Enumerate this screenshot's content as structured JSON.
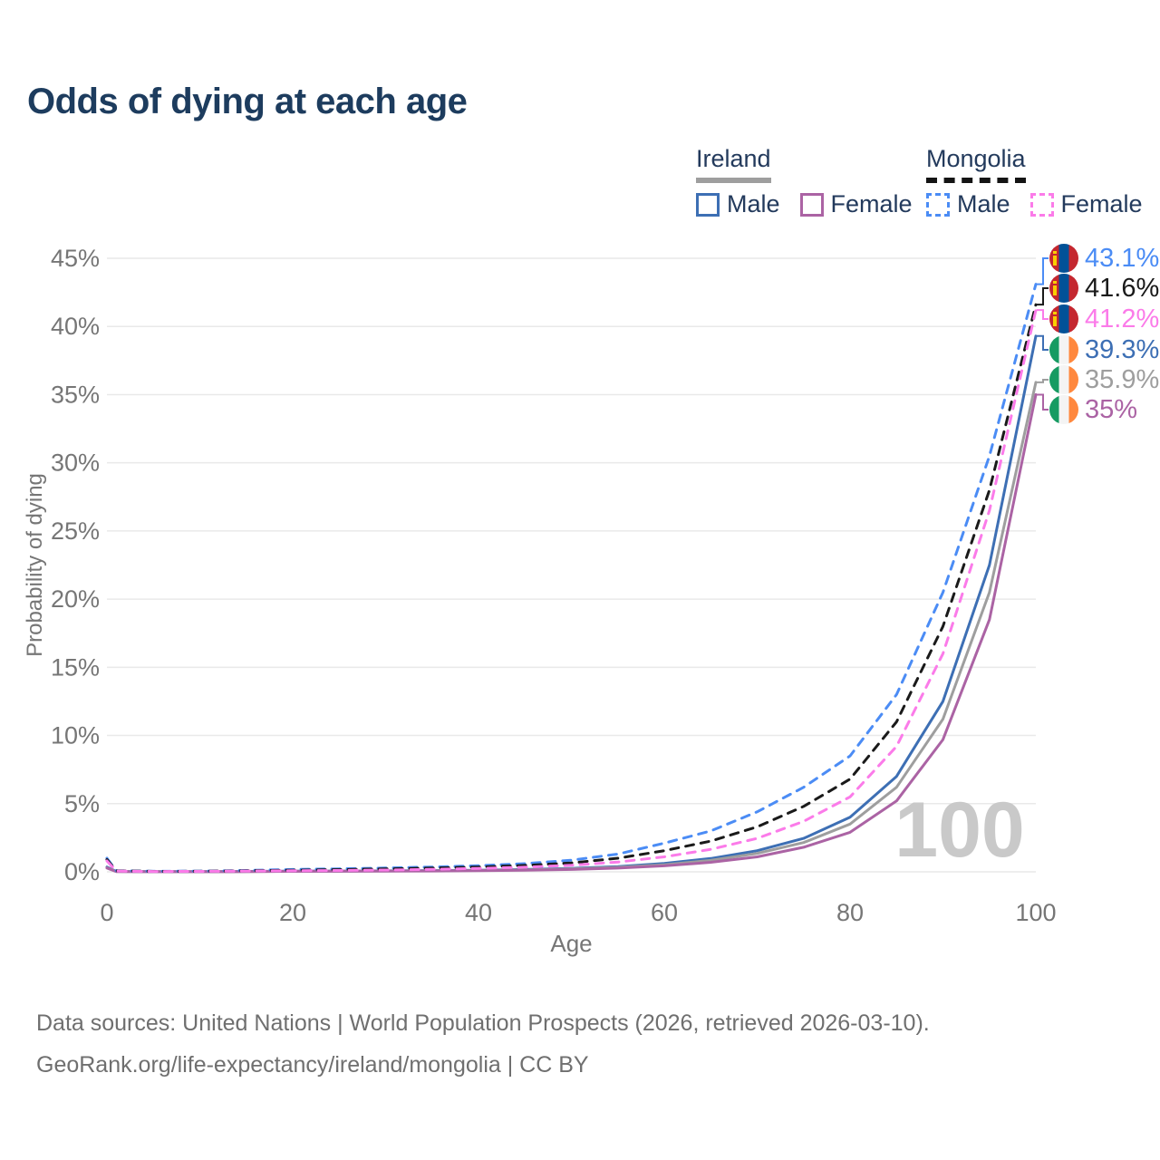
{
  "title": "Odds of dying at each age",
  "legend": {
    "groups": [
      {
        "title": "Ireland",
        "line_style": "solid",
        "items": [
          {
            "label": "Male"
          },
          {
            "label": "Female"
          }
        ]
      },
      {
        "title": "Mongolia",
        "line_style": "dashed",
        "items": [
          {
            "label": "Male"
          },
          {
            "label": "Female"
          }
        ]
      }
    ]
  },
  "axes": {
    "y_title": "Probability of dying",
    "x_title": "Age",
    "y_ticks": [
      "45%",
      "40%",
      "35%",
      "30%",
      "25%",
      "20%",
      "15%",
      "10%",
      "5%",
      "0%"
    ],
    "x_ticks": [
      "0",
      "20",
      "40",
      "60",
      "80",
      "100"
    ]
  },
  "watermark": "100",
  "footer": {
    "line1": "Data sources: United Nations | World Population Prospects (2026, retrieved 2026-03-10).",
    "line2": "GeoRank.org/life-expectancy/ireland/mongolia | CC BY"
  },
  "colors": {
    "title_text": "#1d3c5e",
    "legend_text": "#233a5c",
    "axis_text": "#767676",
    "gridline": "#e9e9e9",
    "watermark": "#c9c9c9",
    "footer_text": "#6f6f6f",
    "ireland_underline": "#9e9e9e",
    "mongolia_underline": "#141414",
    "mongolia_flag_red": "#c4272f",
    "mongolia_flag_blue": "#015197",
    "ireland_flag_green": "#169b62",
    "ireland_flag_orange": "#ff883e"
  },
  "chart_data": {
    "type": "line",
    "title": "Odds of dying at each age",
    "xlabel": "Age",
    "ylabel": "Probability of dying",
    "xlim": [
      0,
      100
    ],
    "ylim": [
      0,
      45
    ],
    "grid": true,
    "legend_position": "top-right",
    "x": [
      0,
      1,
      5,
      10,
      15,
      20,
      25,
      30,
      35,
      40,
      45,
      50,
      55,
      60,
      65,
      70,
      75,
      80,
      85,
      90,
      95,
      100
    ],
    "series": [
      {
        "name": "Mongolia Male",
        "country": "Mongolia",
        "sex": "male",
        "color": "#4b8cf5",
        "dash": true,
        "flag": "mongolia",
        "end_label": "43.1%",
        "values": [
          1.0,
          0.08,
          0.04,
          0.05,
          0.1,
          0.17,
          0.22,
          0.28,
          0.35,
          0.45,
          0.6,
          0.85,
          1.3,
          2.1,
          3.0,
          4.4,
          6.2,
          8.5,
          13.0,
          20.5,
          30.5,
          43.1
        ]
      },
      {
        "name": "Mongolia",
        "country": "Mongolia",
        "sex": "both",
        "color": "#1a1a1a",
        "dash": true,
        "flag": "mongolia",
        "end_label": "41.6%",
        "values": [
          0.9,
          0.07,
          0.03,
          0.04,
          0.08,
          0.12,
          0.16,
          0.21,
          0.27,
          0.35,
          0.47,
          0.65,
          1.0,
          1.55,
          2.25,
          3.3,
          4.8,
          6.8,
          11.0,
          18.0,
          28.0,
          41.6
        ]
      },
      {
        "name": "Mongolia Female",
        "country": "Mongolia",
        "sex": "female",
        "color": "#fb7be9",
        "dash": true,
        "flag": "mongolia",
        "end_label": "41.2%",
        "values": [
          0.8,
          0.06,
          0.025,
          0.03,
          0.06,
          0.08,
          0.1,
          0.13,
          0.18,
          0.25,
          0.34,
          0.48,
          0.72,
          1.1,
          1.65,
          2.45,
          3.7,
          5.5,
          9.2,
          16.0,
          26.5,
          41.2
        ]
      },
      {
        "name": "Ireland Male",
        "country": "Ireland",
        "sex": "male",
        "color": "#3d6fb4",
        "dash": false,
        "flag": "ireland",
        "end_label": "39.3%",
        "values": [
          0.35,
          0.03,
          0.012,
          0.012,
          0.03,
          0.05,
          0.06,
          0.07,
          0.09,
          0.12,
          0.17,
          0.25,
          0.38,
          0.62,
          0.98,
          1.55,
          2.45,
          4.0,
          7.0,
          12.5,
          22.5,
          39.3
        ]
      },
      {
        "name": "Ireland",
        "country": "Ireland",
        "sex": "both",
        "color": "#9e9e9e",
        "dash": false,
        "flag": "ireland",
        "end_label": "35.9%",
        "values": [
          0.3,
          0.025,
          0.01,
          0.01,
          0.02,
          0.04,
          0.05,
          0.06,
          0.08,
          0.1,
          0.14,
          0.21,
          0.33,
          0.52,
          0.84,
          1.35,
          2.15,
          3.5,
          6.2,
          11.2,
          20.5,
          35.9
        ]
      },
      {
        "name": "Ireland Female",
        "country": "Ireland",
        "sex": "female",
        "color": "#ab63a4",
        "dash": false,
        "flag": "ireland",
        "end_label": "35%",
        "values": [
          0.28,
          0.02,
          0.008,
          0.008,
          0.015,
          0.03,
          0.04,
          0.05,
          0.06,
          0.08,
          0.11,
          0.17,
          0.27,
          0.44,
          0.7,
          1.1,
          1.8,
          2.9,
          5.2,
          9.7,
          18.5,
          35.0
        ]
      }
    ]
  }
}
